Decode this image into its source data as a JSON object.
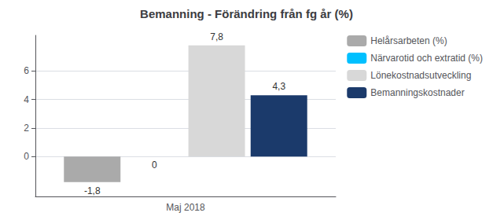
{
  "chart_data": {
    "type": "bar",
    "title": "Bemanning - Förändring från fg år (%)",
    "categories": [
      "Maj 2018"
    ],
    "series": [
      {
        "name": "Helårsarbeten (%)",
        "color": "#aaaaaa",
        "values": [
          -1.8
        ],
        "value_labels": [
          "-1,8"
        ]
      },
      {
        "name": "Närvarotid och extratid (%)",
        "color": "#00c0ff",
        "values": [
          0
        ],
        "value_labels": [
          "0"
        ]
      },
      {
        "name": "Lönekostnadsutveckling",
        "color": "#d8d8d8",
        "values": [
          7.8
        ],
        "value_labels": [
          "7,8"
        ]
      },
      {
        "name": "Bemanningskostnader",
        "color": "#1b3a6b",
        "values": [
          4.3
        ],
        "value_labels": [
          "4,3"
        ]
      }
    ],
    "ylim": [
      -2.8,
      8.5
    ],
    "yticks": [
      0,
      2,
      4,
      6
    ],
    "grid": true,
    "legend": "right",
    "data_labels": true
  }
}
